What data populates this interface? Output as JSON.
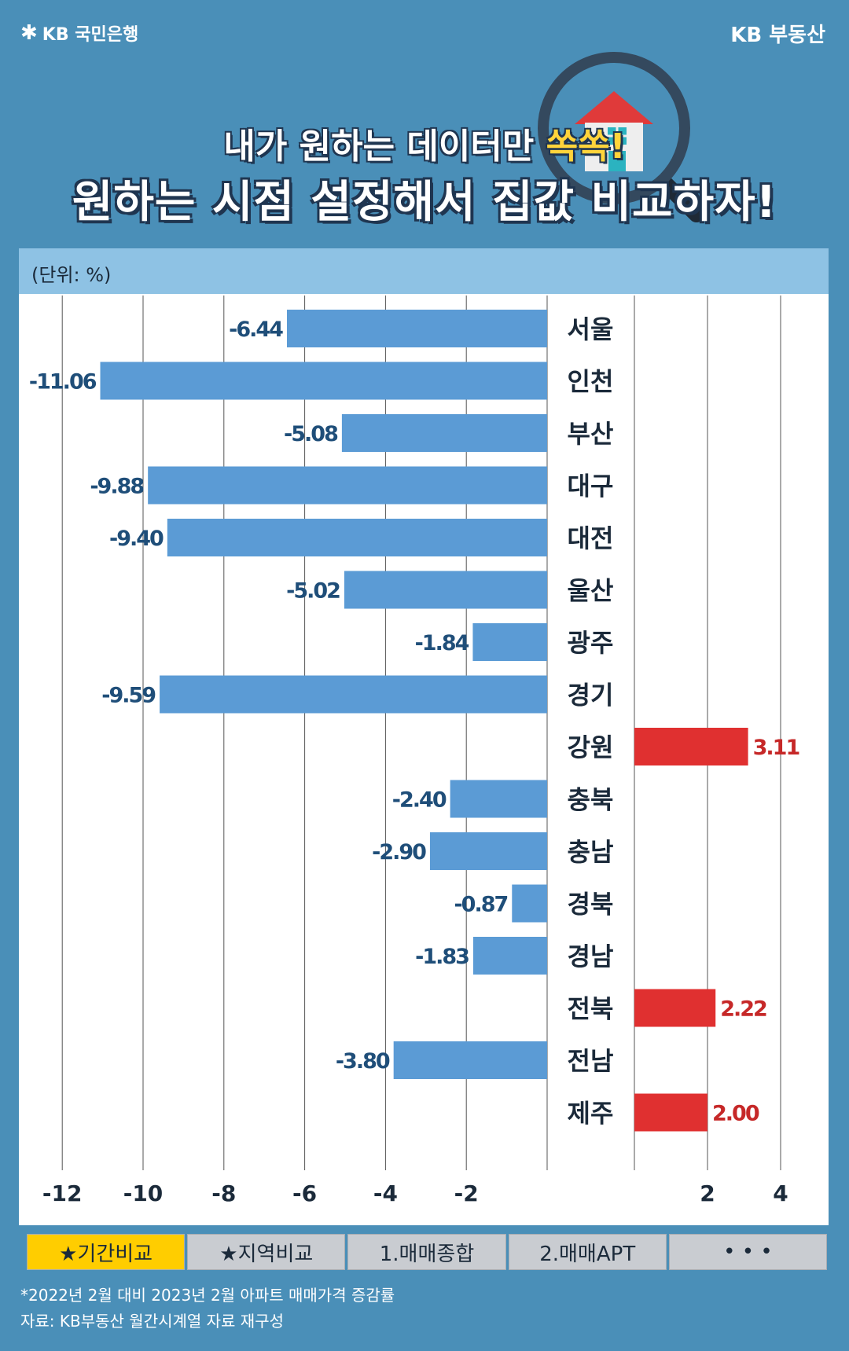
{
  "header": {
    "bank_brand": "KB 국민은행",
    "site_brand": "KB 부동산",
    "headline_prefix": "내가 원하는 데이터만 ",
    "headline_highlight": "쏙쏙!",
    "main_title": "원하는 시점 설정해서 집값 비교하자!"
  },
  "icons": [
    "kb-star-icon",
    "magnifier-house-icon"
  ],
  "colors": {
    "background": "#4a8fb8",
    "negative_bar": "#5b9bd5",
    "positive_bar": "#e03030",
    "negative_label": "#1f4e79",
    "positive_label": "#c62828",
    "header_band": "#8ec2e4",
    "active_tab": "#ffcd00"
  },
  "chart_data": {
    "type": "bar",
    "orientation": "horizontal",
    "unit_label": "(단위: %)",
    "categories": [
      "서울",
      "인천",
      "부산",
      "대구",
      "대전",
      "울산",
      "광주",
      "경기",
      "강원",
      "충북",
      "충남",
      "경북",
      "경남",
      "전북",
      "전남",
      "제주"
    ],
    "values": [
      -6.44,
      -11.06,
      -5.08,
      -9.88,
      -9.4,
      -5.02,
      -1.84,
      -9.59,
      3.11,
      -2.4,
      -2.9,
      -0.87,
      -1.83,
      2.22,
      -3.8,
      2.0
    ],
    "value_labels": [
      "-6.44",
      "-11.06",
      "-5.08",
      "-9.88",
      "-9.40",
      "-5.02",
      "-1.84",
      "-9.59",
      "3.11",
      "-2.40",
      "-2.90",
      "-0.87",
      "-1.83",
      "2.22",
      "-3.80",
      "2.00"
    ],
    "x_ticks": [
      -12,
      -10,
      -8,
      -6,
      -4,
      -2,
      2,
      4
    ],
    "x_tick_labels": [
      "-12",
      "-10",
      "-8",
      "-6",
      "-4",
      "-2",
      "2",
      "4"
    ],
    "xlim": [
      -12,
      4
    ],
    "grid": true
  },
  "tabs": [
    {
      "label": "★기간비교",
      "active": true
    },
    {
      "label": "★지역비교",
      "active": false
    },
    {
      "label": "1.매매종합",
      "active": false
    },
    {
      "label": "2.매매APT",
      "active": false
    },
    {
      "label": "• • •",
      "active": false
    }
  ],
  "footnote": {
    "line1": "*2022년 2월 대비 2023년 2월 아파트 매매가격 증감률",
    "line2": "자료: KB부동산 월간시계열 자료 재구성"
  }
}
